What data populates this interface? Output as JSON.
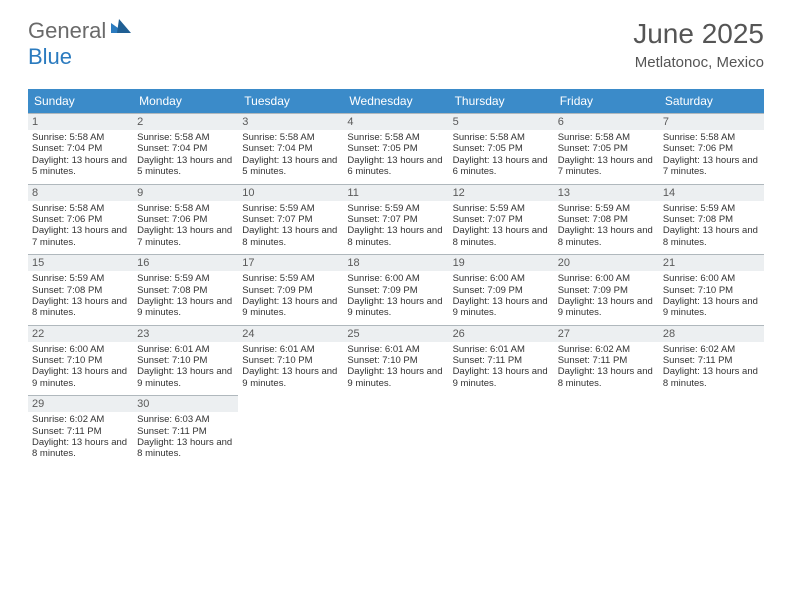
{
  "brand": {
    "part1": "General",
    "part2": "Blue"
  },
  "title": "June 2025",
  "location": "Metlatonoc, Mexico",
  "colors": {
    "header_bg": "#3b8bc9",
    "header_text": "#ffffff",
    "daynum_bg": "#eceff1",
    "daynum_border": "#b0b8bd",
    "body_text": "#333333",
    "title_text": "#555555",
    "logo_gray": "#6a6a6a",
    "logo_blue": "#2b7bbf"
  },
  "day_headers": [
    "Sunday",
    "Monday",
    "Tuesday",
    "Wednesday",
    "Thursday",
    "Friday",
    "Saturday"
  ],
  "weeks": [
    [
      {
        "n": "1",
        "sr": "5:58 AM",
        "ss": "7:04 PM",
        "dl": "13 hours and 5 minutes."
      },
      {
        "n": "2",
        "sr": "5:58 AM",
        "ss": "7:04 PM",
        "dl": "13 hours and 5 minutes."
      },
      {
        "n": "3",
        "sr": "5:58 AM",
        "ss": "7:04 PM",
        "dl": "13 hours and 5 minutes."
      },
      {
        "n": "4",
        "sr": "5:58 AM",
        "ss": "7:05 PM",
        "dl": "13 hours and 6 minutes."
      },
      {
        "n": "5",
        "sr": "5:58 AM",
        "ss": "7:05 PM",
        "dl": "13 hours and 6 minutes."
      },
      {
        "n": "6",
        "sr": "5:58 AM",
        "ss": "7:05 PM",
        "dl": "13 hours and 7 minutes."
      },
      {
        "n": "7",
        "sr": "5:58 AM",
        "ss": "7:06 PM",
        "dl": "13 hours and 7 minutes."
      }
    ],
    [
      {
        "n": "8",
        "sr": "5:58 AM",
        "ss": "7:06 PM",
        "dl": "13 hours and 7 minutes."
      },
      {
        "n": "9",
        "sr": "5:58 AM",
        "ss": "7:06 PM",
        "dl": "13 hours and 7 minutes."
      },
      {
        "n": "10",
        "sr": "5:59 AM",
        "ss": "7:07 PM",
        "dl": "13 hours and 8 minutes."
      },
      {
        "n": "11",
        "sr": "5:59 AM",
        "ss": "7:07 PM",
        "dl": "13 hours and 8 minutes."
      },
      {
        "n": "12",
        "sr": "5:59 AM",
        "ss": "7:07 PM",
        "dl": "13 hours and 8 minutes."
      },
      {
        "n": "13",
        "sr": "5:59 AM",
        "ss": "7:08 PM",
        "dl": "13 hours and 8 minutes."
      },
      {
        "n": "14",
        "sr": "5:59 AM",
        "ss": "7:08 PM",
        "dl": "13 hours and 8 minutes."
      }
    ],
    [
      {
        "n": "15",
        "sr": "5:59 AM",
        "ss": "7:08 PM",
        "dl": "13 hours and 8 minutes."
      },
      {
        "n": "16",
        "sr": "5:59 AM",
        "ss": "7:08 PM",
        "dl": "13 hours and 9 minutes."
      },
      {
        "n": "17",
        "sr": "5:59 AM",
        "ss": "7:09 PM",
        "dl": "13 hours and 9 minutes."
      },
      {
        "n": "18",
        "sr": "6:00 AM",
        "ss": "7:09 PM",
        "dl": "13 hours and 9 minutes."
      },
      {
        "n": "19",
        "sr": "6:00 AM",
        "ss": "7:09 PM",
        "dl": "13 hours and 9 minutes."
      },
      {
        "n": "20",
        "sr": "6:00 AM",
        "ss": "7:09 PM",
        "dl": "13 hours and 9 minutes."
      },
      {
        "n": "21",
        "sr": "6:00 AM",
        "ss": "7:10 PM",
        "dl": "13 hours and 9 minutes."
      }
    ],
    [
      {
        "n": "22",
        "sr": "6:00 AM",
        "ss": "7:10 PM",
        "dl": "13 hours and 9 minutes."
      },
      {
        "n": "23",
        "sr": "6:01 AM",
        "ss": "7:10 PM",
        "dl": "13 hours and 9 minutes."
      },
      {
        "n": "24",
        "sr": "6:01 AM",
        "ss": "7:10 PM",
        "dl": "13 hours and 9 minutes."
      },
      {
        "n": "25",
        "sr": "6:01 AM",
        "ss": "7:10 PM",
        "dl": "13 hours and 9 minutes."
      },
      {
        "n": "26",
        "sr": "6:01 AM",
        "ss": "7:11 PM",
        "dl": "13 hours and 9 minutes."
      },
      {
        "n": "27",
        "sr": "6:02 AM",
        "ss": "7:11 PM",
        "dl": "13 hours and 8 minutes."
      },
      {
        "n": "28",
        "sr": "6:02 AM",
        "ss": "7:11 PM",
        "dl": "13 hours and 8 minutes."
      }
    ],
    [
      {
        "n": "29",
        "sr": "6:02 AM",
        "ss": "7:11 PM",
        "dl": "13 hours and 8 minutes."
      },
      {
        "n": "30",
        "sr": "6:03 AM",
        "ss": "7:11 PM",
        "dl": "13 hours and 8 minutes."
      },
      null,
      null,
      null,
      null,
      null
    ]
  ],
  "labels": {
    "sunrise": "Sunrise:",
    "sunset": "Sunset:",
    "daylight": "Daylight:"
  }
}
